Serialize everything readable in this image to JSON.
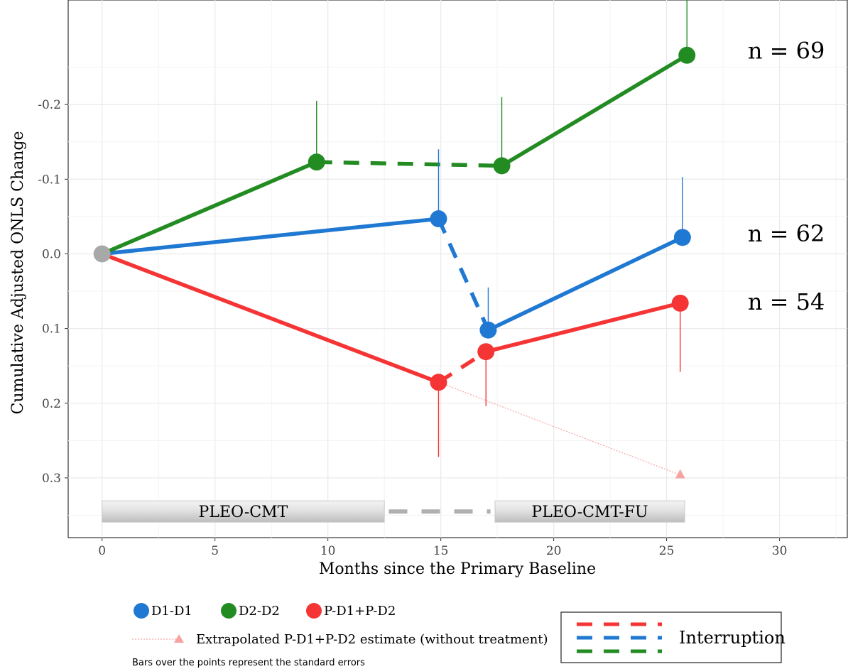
{
  "chart_data": {
    "type": "line",
    "title": "",
    "xlabel": "Months since the Primary Baseline",
    "ylabel": "Cumulative Adjusted ONLS Change",
    "xlim": [
      -1.5,
      33
    ],
    "ylim": [
      -0.34,
      0.38
    ],
    "y_reversed": true,
    "xticks": [
      0,
      5,
      10,
      15,
      20,
      25,
      30
    ],
    "yticks": [
      -0.2,
      -0.1,
      0.0,
      0.1,
      0.2,
      0.3
    ],
    "ytick_labels": [
      "-0.2",
      "-0.1",
      "0.0",
      "0.1",
      "0.2",
      "0.3"
    ],
    "grid": true,
    "baseline_point": {
      "x": 0,
      "y": 0.0,
      "color": "#a8a8a8"
    },
    "series": [
      {
        "name": "D1-D1",
        "color": "#1f78d1",
        "points": [
          {
            "x": 0,
            "y": 0.0,
            "se": null
          },
          {
            "x": 14.9,
            "y": -0.047,
            "se": 0.093
          },
          {
            "x": 17.1,
            "y": 0.102,
            "se": 0.057
          },
          {
            "x": 25.7,
            "y": -0.022,
            "se": 0.081
          }
        ],
        "segments": [
          {
            "from": 0,
            "to": 1,
            "style": "solid"
          },
          {
            "from": 1,
            "to": 2,
            "style": "dashed"
          },
          {
            "from": 2,
            "to": 3,
            "style": "solid"
          }
        ],
        "label": "n = 62",
        "label_pos": {
          "x": 30.3,
          "y": -0.027
        }
      },
      {
        "name": "D2-D2",
        "color": "#228b22",
        "points": [
          {
            "x": 0,
            "y": 0.0,
            "se": null
          },
          {
            "x": 9.5,
            "y": -0.123,
            "se": 0.082
          },
          {
            "x": 17.7,
            "y": -0.118,
            "se": 0.092
          },
          {
            "x": 25.9,
            "y": -0.266,
            "se": 0.079
          }
        ],
        "segments": [
          {
            "from": 0,
            "to": 1,
            "style": "solid"
          },
          {
            "from": 1,
            "to": 2,
            "style": "dashed"
          },
          {
            "from": 2,
            "to": 3,
            "style": "solid"
          }
        ],
        "label": "n = 69",
        "label_pos": {
          "x": 30.3,
          "y": -0.272
        }
      },
      {
        "name": "P-D1+P-D2",
        "color": "#f53535",
        "points": [
          {
            "x": 0,
            "y": 0.0,
            "se": null
          },
          {
            "x": 14.9,
            "y": 0.172,
            "se": 0.1
          },
          {
            "x": 17.0,
            "y": 0.131,
            "se": 0.073
          },
          {
            "x": 25.6,
            "y": 0.066,
            "se": 0.092
          }
        ],
        "segments": [
          {
            "from": 0,
            "to": 1,
            "style": "solid"
          },
          {
            "from": 1,
            "to": 2,
            "style": "dashed"
          },
          {
            "from": 2,
            "to": 3,
            "style": "solid"
          }
        ],
        "label": "n = 54",
        "label_pos": {
          "x": 30.3,
          "y": 0.064
        }
      }
    ],
    "extrapolated": {
      "name": "Extrapolated P-D1+P-D2 estimate (without treatment)",
      "color": "#f8a3a3",
      "from": {
        "x": 14.9,
        "y": 0.172
      },
      "to": {
        "x": 25.6,
        "y": 0.296
      }
    },
    "study_bars": [
      {
        "label": "PLEO-CMT",
        "x_start": 0,
        "x_end": 12.5,
        "y": 0.345
      },
      {
        "label": "PLEO-CMT-FU",
        "x_start": 17.4,
        "x_end": 25.8,
        "y": 0.345
      }
    ],
    "study_gap": {
      "x_start": 12.7,
      "x_end": 17.2,
      "y": 0.345,
      "color": "#b0b0b0"
    },
    "legend": {
      "items": [
        {
          "label": "D1-D1",
          "color": "#1f78d1"
        },
        {
          "label": "D2-D2",
          "color": "#228b22"
        },
        {
          "label": "P-D1+P-D2",
          "color": "#f53535"
        }
      ],
      "extrapolated_label": "Extrapolated P-D1+P-D2 estimate (without treatment)",
      "note": "Bars over the points represent the standard errors",
      "interruption_label": "Interruption",
      "interruption_colors": [
        "#f53535",
        "#1f78d1",
        "#228b22"
      ]
    },
    "header_fragment": "                                                                  "
  },
  "colors": {
    "panel_border": "#333333",
    "grid": "#ebebeb",
    "background": "#ffffff"
  }
}
